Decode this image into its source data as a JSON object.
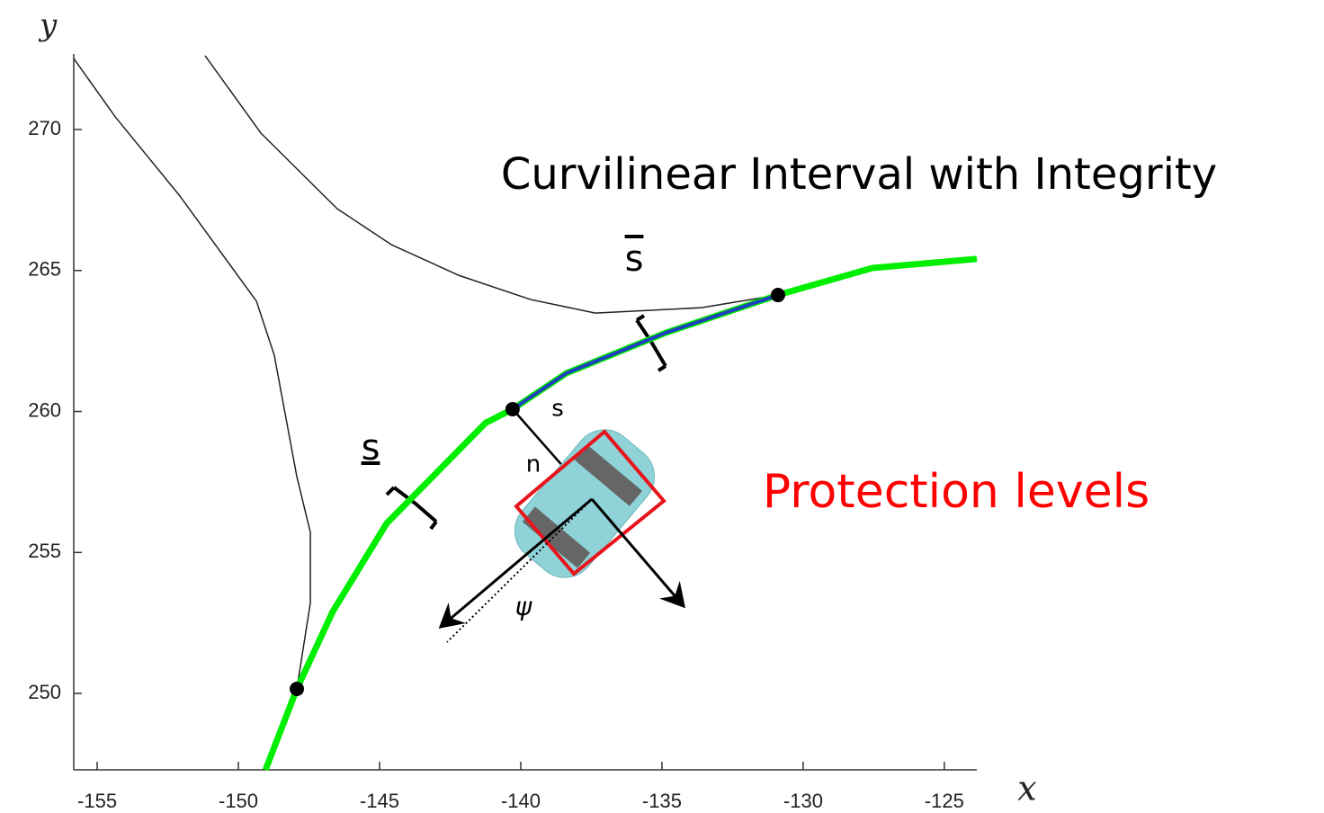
{
  "chart_data": {
    "type": "line",
    "x_label": "x",
    "y_label": "y",
    "xlim": [
      -155.83,
      -123.85
    ],
    "ylim": [
      247.29,
      272.68
    ],
    "xticks": [
      -155,
      -150,
      -145,
      -140,
      -135,
      -130,
      -125
    ],
    "yticks": [
      250,
      255,
      260,
      265,
      270
    ],
    "grid": false,
    "series": [
      {
        "name": "road boundary left",
        "color": "#222222",
        "x": [
          -155.83,
          -154.36,
          -152.07,
          -149.36,
          -148.73,
          -147.93,
          -147.45,
          -147.45,
          -147.93
        ],
        "values": [
          272.52,
          270.45,
          267.64,
          263.91,
          262.0,
          257.69,
          255.71,
          253.22,
          250.16
        ]
      },
      {
        "name": "road boundary right",
        "color": "#222222",
        "x": [
          -151.18,
          -149.2,
          -146.5,
          -144.59,
          -142.2,
          -139.65,
          -137.36,
          -133.6,
          -130.89
        ],
        "values": [
          272.62,
          269.87,
          267.19,
          265.92,
          264.83,
          263.97,
          263.49,
          263.68,
          264.13
        ]
      },
      {
        "name": "centerline",
        "color": "#00ee00",
        "x": [
          -149.04,
          -147.93,
          -146.66,
          -144.75,
          -141.24,
          -140.29,
          -138.38,
          -134.87,
          -130.89,
          -127.55,
          -123.85
        ],
        "values": [
          247.29,
          250.16,
          252.9,
          256.03,
          259.6,
          260.08,
          261.36,
          262.79,
          264.13,
          265.09,
          265.41
        ]
      },
      {
        "name": "interval",
        "color": "#1f3fbf",
        "x": [
          -140.29,
          -138.38,
          -134.87,
          -130.89
        ],
        "values": [
          260.08,
          261.36,
          262.79,
          264.13
        ]
      },
      {
        "name": "nodes",
        "color": "#000000",
        "x": [
          -147.93,
          -140.29,
          -130.89
        ],
        "values": [
          250.16,
          260.08,
          264.13
        ]
      }
    ],
    "annotations": [
      {
        "text": "Curvilinear Interval with Integrity",
        "color": "#000000"
      },
      {
        "text": "s",
        "color": "#000000"
      },
      {
        "text": "s",
        "color": "#000000"
      },
      {
        "text": "s",
        "color": "#000000"
      },
      {
        "text": "n",
        "color": "#000000"
      },
      {
        "text": "ψ",
        "color": "#000000"
      },
      {
        "text": "Protection levels",
        "color": "#ff0000"
      }
    ]
  }
}
